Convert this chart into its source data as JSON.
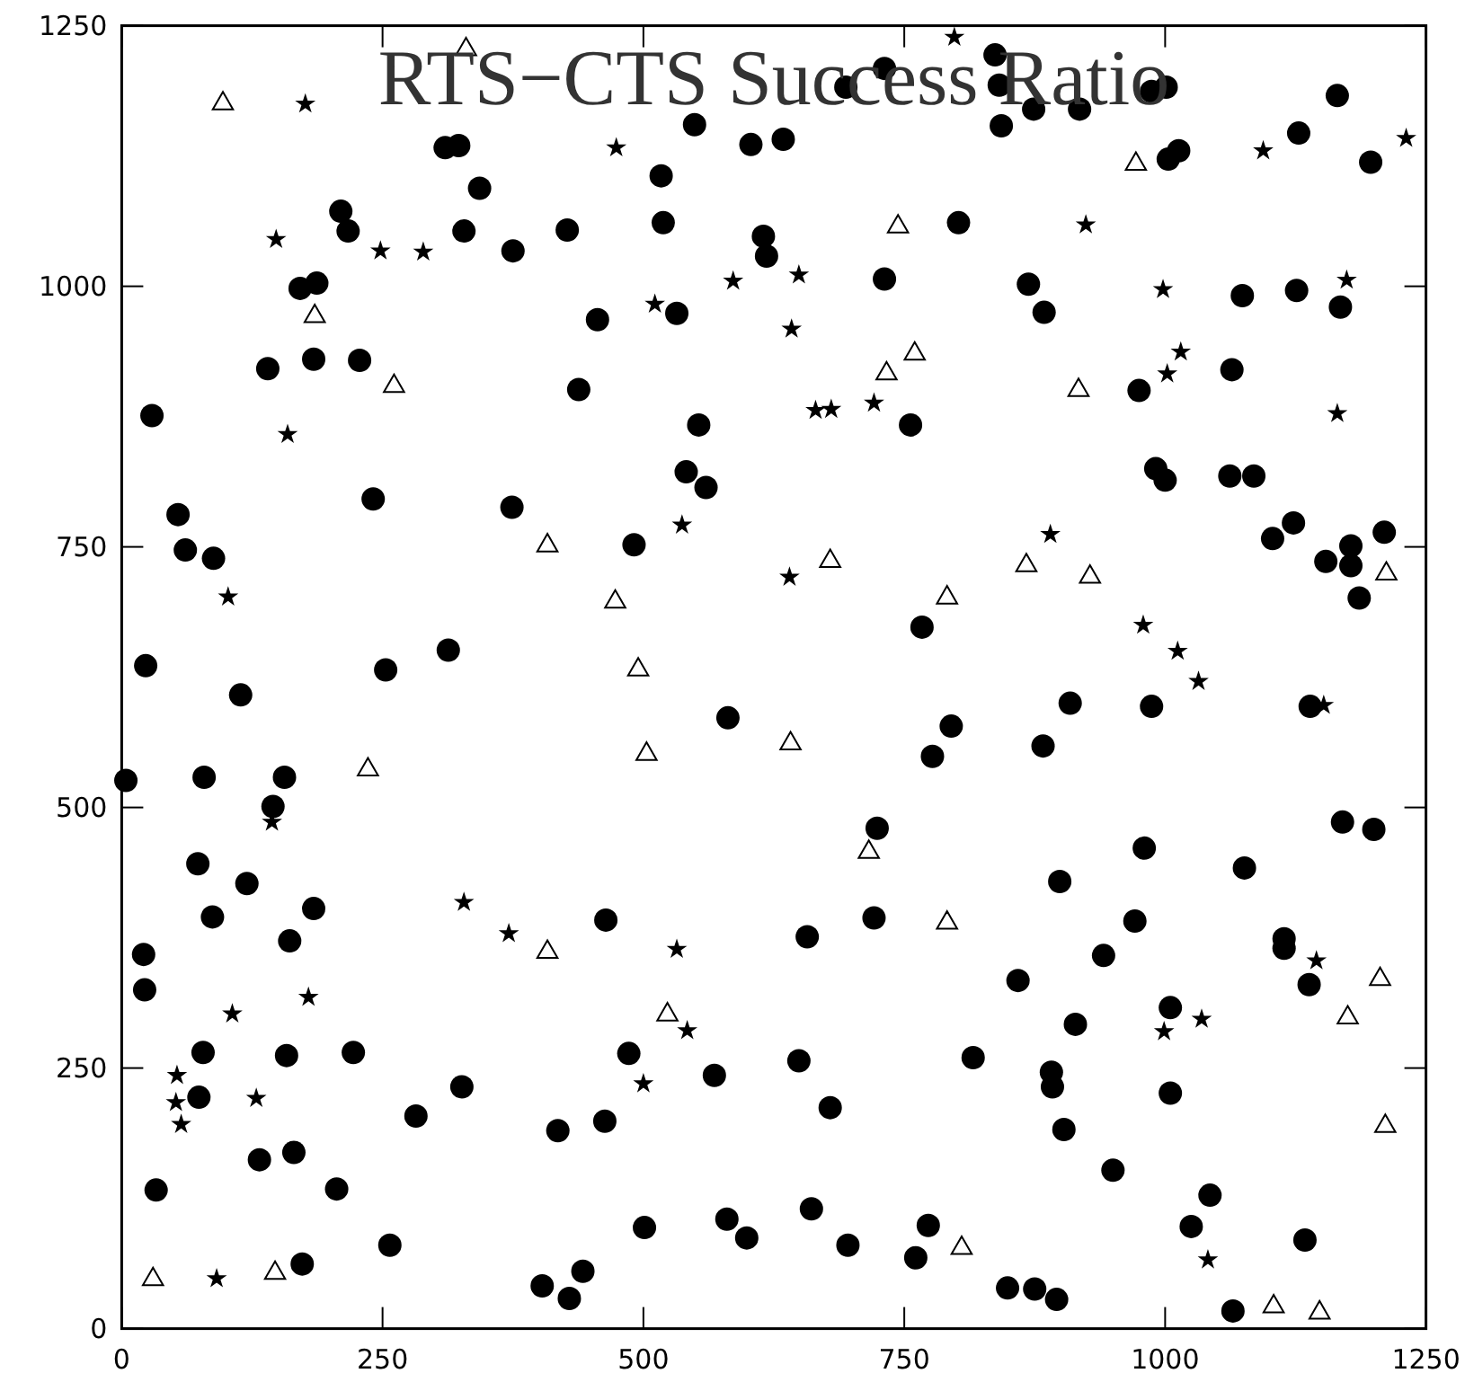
{
  "chart_data": {
    "type": "scatter",
    "title": "RTS−CTS Success Ratio",
    "xlim": [
      0,
      1250
    ],
    "ylim": [
      0,
      1250
    ],
    "xticks": [
      0,
      250,
      500,
      750,
      1000,
      1250
    ],
    "yticks": [
      0,
      250,
      500,
      750,
      1000,
      1250
    ],
    "series": [
      {
        "marker": "circle",
        "color": "#000000",
        "x": [
          310,
          323,
          343,
          210,
          217,
          328,
          375,
          171,
          187,
          140,
          184,
          228,
          29,
          54,
          61,
          88,
          241,
          374,
          23,
          253,
          313,
          731,
          694,
          549,
          603,
          634,
          517,
          519,
          427,
          802,
          615,
          618,
          731,
          456,
          532,
          438,
          553,
          756,
          541,
          560,
          491,
          767,
          837,
          841,
          843,
          874,
          918,
          987,
          1001,
          1003,
          1013,
          1128,
          1165,
          1197,
          869,
          884,
          1074,
          1126,
          1168,
          1064,
          975,
          991,
          1000,
          1062,
          1085,
          1103,
          1123,
          1154,
          1178,
          1178,
          1210,
          1186,
          114,
          4,
          79,
          156,
          145,
          73,
          120,
          87,
          184,
          161,
          21,
          22,
          78,
          158,
          222,
          74,
          326,
          282,
          132,
          165,
          33,
          206,
          257,
          173,
          403,
          581,
          795,
          777,
          724,
          464,
          657,
          721,
          486,
          568,
          649,
          679,
          816,
          418,
          463,
          501,
          580,
          599,
          661,
          696,
          773,
          761,
          442,
          429,
          909,
          987,
          1139,
          883,
          1170,
          1200,
          980,
          1076,
          899,
          971,
          1114,
          1114,
          941,
          859,
          1138,
          1005,
          914,
          891,
          892,
          1005,
          903,
          950,
          1043,
          1025,
          1134,
          849,
          875,
          896,
          1065
        ],
        "values": [
          1133,
          1135,
          1094,
          1072,
          1053,
          1053,
          1034,
          998,
          1003,
          921,
          930,
          929,
          876,
          781,
          747,
          739,
          796,
          788,
          636,
          632,
          651,
          1209,
          1191,
          1155,
          1136,
          1141,
          1106,
          1061,
          1054,
          1061,
          1048,
          1029,
          1007,
          968,
          974,
          901,
          867,
          867,
          822,
          807,
          752,
          673,
          1222,
          1193,
          1154,
          1170,
          1170,
          1187,
          1191,
          1122,
          1130,
          1147,
          1183,
          1119,
          1002,
          975,
          991,
          996,
          980,
          920,
          900,
          825,
          814,
          818,
          818,
          758,
          773,
          736,
          751,
          732,
          764,
          701,
          608,
          526,
          529,
          529,
          501,
          446,
          427,
          395,
          403,
          372,
          359,
          325,
          265,
          262,
          265,
          222,
          232,
          204,
          162,
          169,
          133,
          134,
          80,
          62,
          41,
          586,
          578,
          549,
          480,
          392,
          376,
          394,
          264,
          243,
          257,
          212,
          260,
          190,
          199,
          97,
          105,
          87,
          115,
          80,
          99,
          68,
          55,
          29,
          600,
          597,
          597,
          559,
          486,
          479,
          461,
          442,
          429,
          391,
          374,
          365,
          358,
          334,
          330,
          308,
          292,
          246,
          232,
          226,
          191,
          152,
          128,
          98,
          85,
          39,
          38,
          28,
          17
        ]
      },
      {
        "marker": "star",
        "color": "#000000",
        "x": [
          176,
          148,
          248,
          289,
          159,
          102,
          798,
          474,
          649,
          586,
          511,
          642,
          665,
          680,
          721,
          537,
          640,
          1094,
          1231,
          924,
          998,
          1174,
          1015,
          1002,
          1165,
          890,
          979,
          1012,
          1032,
          144,
          328,
          371,
          106,
          179,
          53,
          52,
          57,
          129,
          91,
          532,
          542,
          500,
          1152,
          1145,
          1035,
          999,
          1041
        ],
        "values": [
          1175,
          1045,
          1034,
          1033,
          858,
          702,
          1239,
          1133,
          1011,
          1005,
          983,
          959,
          881,
          882,
          888,
          771,
          721,
          1130,
          1142,
          1059,
          997,
          1006,
          937,
          916,
          878,
          762,
          675,
          650,
          621,
          486,
          409,
          379,
          302,
          318,
          243,
          217,
          196,
          221,
          48,
          364,
          286,
          235,
          598,
          353,
          297,
          285,
          66
        ]
      },
      {
        "marker": "triangle",
        "color": "#000000",
        "x": [
          330,
          97,
          185,
          261,
          408,
          744,
          760,
          733,
          679,
          473,
          791,
          495,
          972,
          917,
          867,
          928,
          1212,
          236,
          408,
          30,
          147,
          503,
          641,
          716,
          791,
          523,
          805,
          1206,
          1175,
          1211,
          1104,
          1148
        ],
        "values": [
          1229,
          1177,
          973,
          906,
          753,
          1059,
          937,
          918,
          738,
          699,
          703,
          634,
          1119,
          902,
          734,
          723,
          726,
          538,
          363,
          49,
          55,
          553,
          563,
          459,
          391,
          303,
          79,
          337,
          300,
          196,
          23,
          17
        ]
      }
    ]
  }
}
